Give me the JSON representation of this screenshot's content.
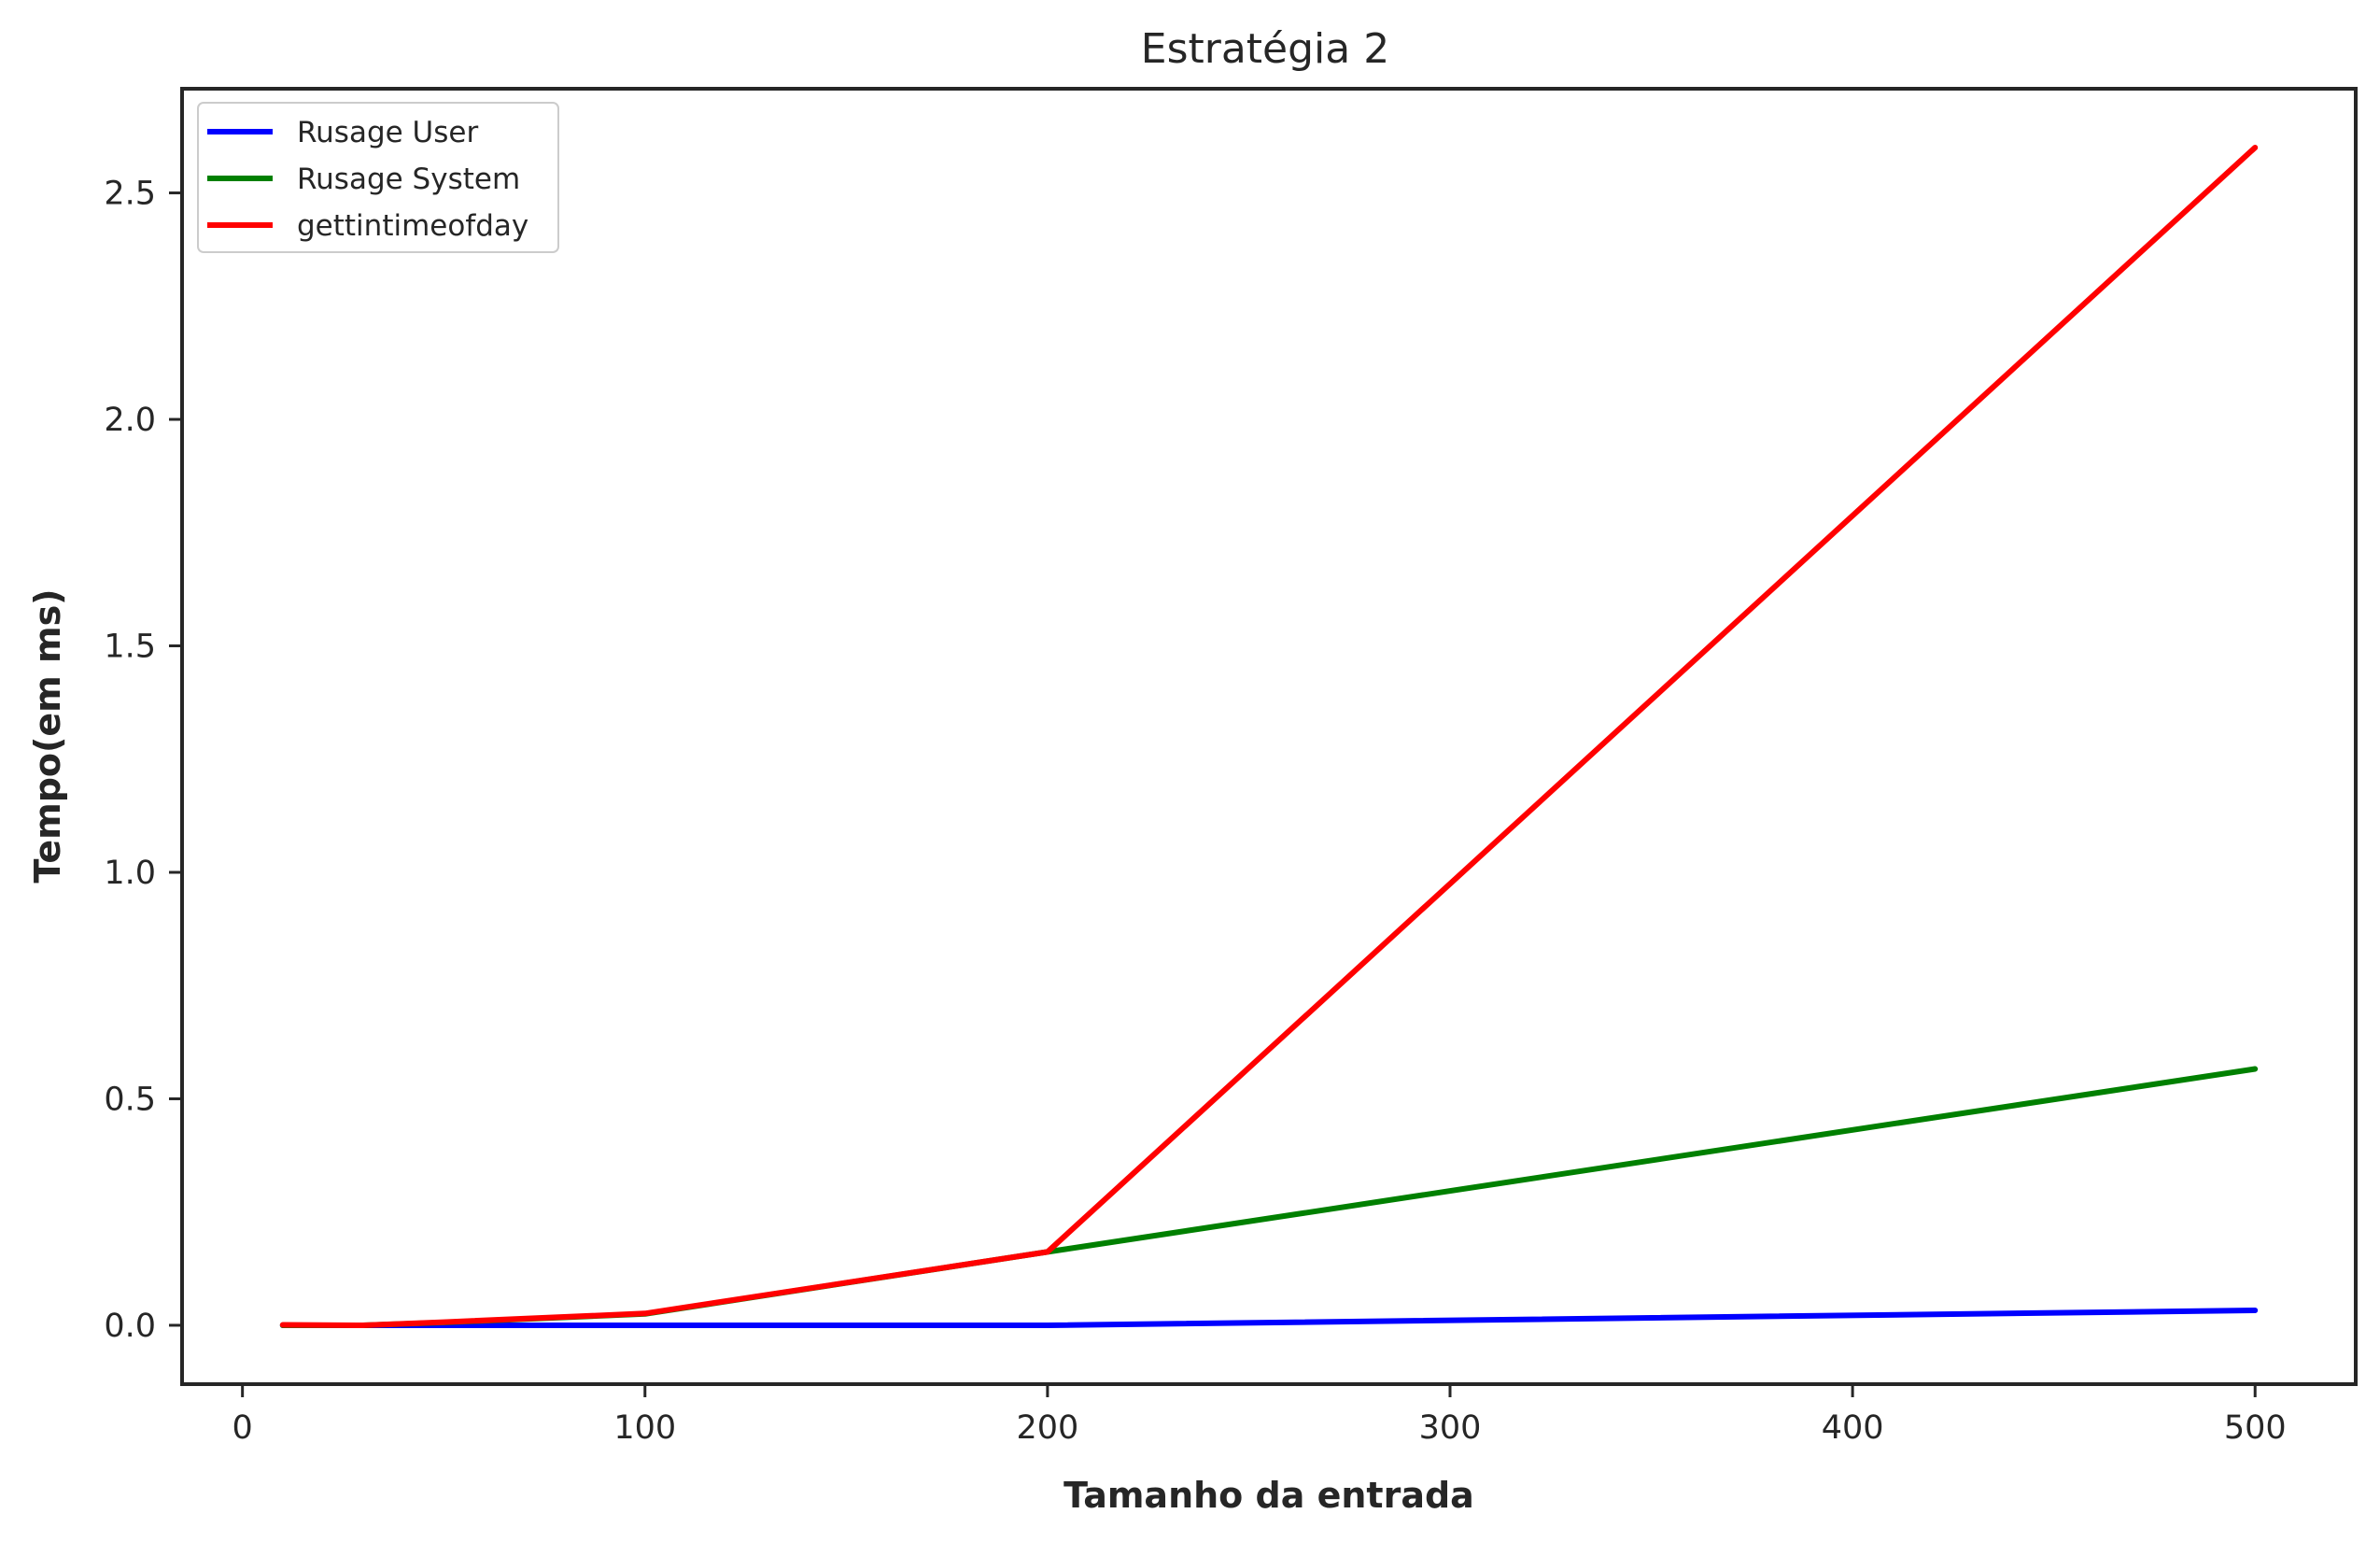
{
  "chart_data": {
    "type": "line",
    "title": "Estratégia 2",
    "xlabel": "Tamanho da entrada",
    "ylabel": "Tempo(em ms)",
    "xlim": [
      -15,
      525
    ],
    "ylim": [
      -0.13,
      2.73
    ],
    "xticks": [
      0,
      100,
      200,
      300,
      400,
      500
    ],
    "xtick_labels": [
      "0",
      "100",
      "200",
      "300",
      "400",
      "500"
    ],
    "yticks": [
      0.0,
      0.5,
      1.0,
      1.5,
      2.0,
      2.5
    ],
    "ytick_labels": [
      "0.0",
      "0.5",
      "1.0",
      "1.5",
      "2.0",
      "2.5"
    ],
    "grid": false,
    "legend_position": "top-left",
    "x": [
      10,
      30,
      50,
      100,
      200,
      500
    ],
    "series": [
      {
        "name": "Rusage User",
        "color": "#0000ff",
        "values": [
          0.0,
          0.0,
          0.0,
          0.0,
          0.0,
          0.033
        ]
      },
      {
        "name": "Rusage System",
        "color": "#008000",
        "values": [
          0.0,
          0.0,
          0.006,
          0.025,
          0.162,
          0.566
        ]
      },
      {
        "name": "gettintimeofday",
        "color": "#ff0000",
        "values": [
          0.001,
          0.0,
          0.007,
          0.026,
          0.162,
          2.6
        ]
      }
    ]
  }
}
